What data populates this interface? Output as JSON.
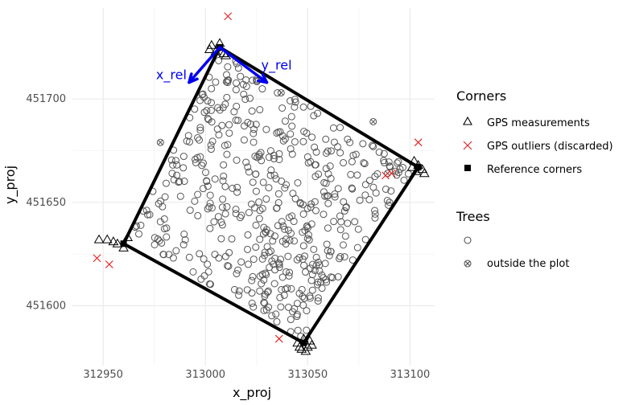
{
  "chart_data": {
    "type": "scatter",
    "xlabel": "x_proj",
    "ylabel": "y_proj",
    "xlim": [
      312935,
      313112
    ],
    "ylim": [
      451571,
      451744
    ],
    "x_ticks": [
      312950,
      313000,
      313050,
      313100
    ],
    "y_ticks": [
      451600,
      451650,
      451700
    ],
    "grid": true,
    "legend_position": "right",
    "colors": {
      "plot_outline": "#000000",
      "axis_arrows": "#0000ee",
      "outliers": "#e31a1c",
      "trees": "#555555",
      "grid": "#ebebeb"
    },
    "arrows": [
      {
        "label": "x_rel",
        "from": [
          313007,
          451725
        ],
        "to": [
          312992,
          451708
        ]
      },
      {
        "label": "y_rel",
        "from": [
          313007,
          451725
        ],
        "to": [
          313030,
          451708
        ]
      }
    ],
    "reference_corners": [
      [
        313007,
        451725
      ],
      [
        313104,
        451667
      ],
      [
        313048,
        451582
      ],
      [
        312960,
        451630
      ]
    ],
    "gps_measurements": [
      [
        313003,
        451726
      ],
      [
        313007,
        451727
      ],
      [
        313005,
        451723
      ],
      [
        313009,
        451722
      ],
      [
        313002,
        451724
      ],
      [
        313010,
        451721
      ],
      [
        313102,
        451670
      ],
      [
        313104,
        451668
      ],
      [
        313106,
        451666
      ],
      [
        313101,
        451667
      ],
      [
        313107,
        451664
      ],
      [
        313103,
        451665
      ],
      [
        313048,
        451584
      ],
      [
        313051,
        451583
      ],
      [
        313045,
        451582
      ],
      [
        313050,
        451580
      ],
      [
        313047,
        451579
      ],
      [
        313052,
        451581
      ],
      [
        313049,
        451578
      ],
      [
        313046,
        451580
      ],
      [
        312948,
        451632
      ],
      [
        312952,
        451632
      ],
      [
        312957,
        451630
      ],
      [
        312960,
        451628
      ],
      [
        312962,
        451633
      ],
      [
        312955,
        451631
      ]
    ],
    "gps_outliers": [
      [
        313011,
        451740
      ],
      [
        313104,
        451679
      ],
      [
        313036,
        451584
      ],
      [
        312947,
        451623
      ],
      [
        312953,
        451620
      ],
      [
        313088,
        451663
      ],
      [
        313091,
        451664
      ]
    ],
    "trees_outside_plot": [
      [
        312978,
        451679
      ],
      [
        313037,
        451703
      ],
      [
        313082,
        451689
      ],
      [
        313089,
        451664
      ]
    ],
    "trees": {
      "count": 520,
      "description_note": "dense cloud of individual trees filling the rotated plot polygon"
    },
    "legend": {
      "corners_title": "Corners",
      "corners_items": [
        {
          "label": "GPS measurements",
          "symbol": "triangle"
        },
        {
          "label": "GPS outliers (discarded)",
          "symbol": "cross"
        },
        {
          "label": "Reference corners",
          "symbol": "square"
        }
      ],
      "trees_title": "Trees",
      "trees_items": [
        {
          "label": "",
          "symbol": "circle"
        },
        {
          "label": "outside the plot",
          "symbol": "circle-x"
        }
      ]
    }
  }
}
